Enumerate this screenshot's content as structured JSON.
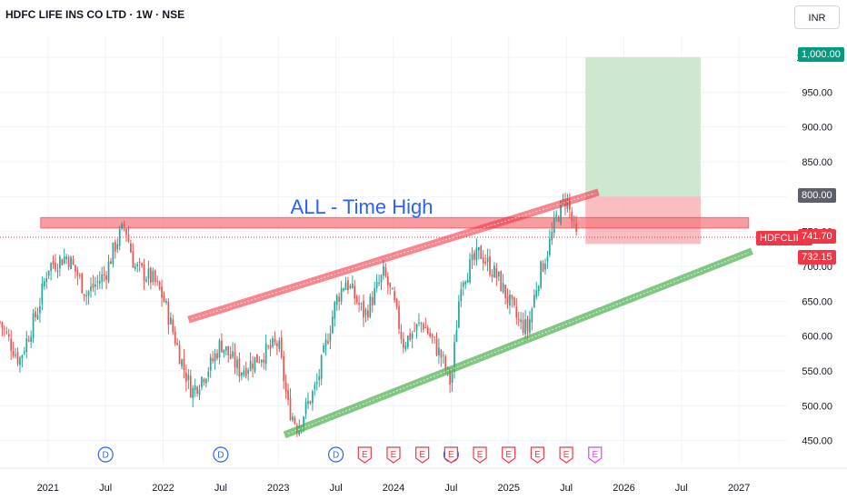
{
  "header": {
    "symbol_title": "HDFC LIFE INS CO LTD · 1W · NSE",
    "currency": "INR"
  },
  "annotation": {
    "text": "ALL - Time High",
    "color": "#2962ff"
  },
  "price_tags": {
    "target": "1,000.00",
    "entry": "800.00",
    "ticker": "HDFCLIFE",
    "last": "741.70",
    "stop": "732.15"
  },
  "colors": {
    "up": "#26a69a",
    "down": "#ef5350",
    "resistance": "#f23645",
    "support": "#4caf50",
    "target_zone": "#c8e6c9",
    "stop_zone": "#f8a7ad"
  },
  "events": {
    "dividend_label": "D",
    "earnings_label": "E"
  },
  "chart_data": {
    "type": "candlestick",
    "title": "HDFC LIFE INS CO LTD · 1W · NSE",
    "x_ticks": [
      "2021",
      "Jul",
      "2022",
      "Jul",
      "2023",
      "Jul",
      "2024",
      "Jul",
      "2025",
      "Jul",
      "2026",
      "Jul",
      "2027"
    ],
    "y_ticks": [
      450,
      500,
      550,
      600,
      650,
      700,
      750,
      800,
      850,
      900,
      950,
      1000
    ],
    "ylim": [
      430,
      1030
    ],
    "xlim": [
      "2020-08",
      "2027-06"
    ],
    "close_path": [
      [
        "2020-08",
        620
      ],
      [
        "2020-10",
        565
      ],
      [
        "2020-12",
        640
      ],
      [
        "2021-01",
        700
      ],
      [
        "2021-03",
        715
      ],
      [
        "2021-04",
        690
      ],
      [
        "2021-05",
        660
      ],
      [
        "2021-07",
        690
      ],
      [
        "2021-08",
        730
      ],
      [
        "2021-09",
        760
      ],
      [
        "2021-10",
        700
      ],
      [
        "2021-12",
        680
      ],
      [
        "2022-01",
        655
      ],
      [
        "2022-03",
        560
      ],
      [
        "2022-04",
        520
      ],
      [
        "2022-06",
        560
      ],
      [
        "2022-07",
        590
      ],
      [
        "2022-09",
        550
      ],
      [
        "2022-11",
        570
      ],
      [
        "2023-01",
        590
      ],
      [
        "2023-02",
        500
      ],
      [
        "2023-03",
        470
      ],
      [
        "2023-05",
        530
      ],
      [
        "2023-07",
        650
      ],
      [
        "2023-08",
        680
      ],
      [
        "2023-10",
        630
      ],
      [
        "2023-12",
        690
      ],
      [
        "2024-01",
        650
      ],
      [
        "2024-02",
        590
      ],
      [
        "2024-04",
        620
      ],
      [
        "2024-06",
        570
      ],
      [
        "2024-07",
        530
      ],
      [
        "2024-08",
        680
      ],
      [
        "2024-10",
        720
      ],
      [
        "2024-11",
        700
      ],
      [
        "2024-12",
        680
      ],
      [
        "2025-02",
        620
      ],
      [
        "2025-03",
        610
      ],
      [
        "2025-04",
        680
      ],
      [
        "2025-05",
        720
      ],
      [
        "2025-06",
        770
      ],
      [
        "2025-07",
        800
      ],
      [
        "2025-08",
        741.7
      ]
    ],
    "all_time_high_zone": [
      755,
      770
    ],
    "resistance_trendline": [
      [
        "2022-04",
        625
      ],
      [
        "2025-10",
        805
      ]
    ],
    "support_trendline": [
      [
        "2023-02",
        460
      ],
      [
        "2027-02",
        720
      ]
    ],
    "long_position": {
      "entry": 800,
      "target": 1000,
      "stop": 732.15
    },
    "last_price": 741.7,
    "dividends": [
      "2021-07",
      "2022-07",
      "2023-07",
      "2024-07"
    ],
    "earnings": [
      "2023-10",
      "2024-01",
      "2024-04",
      "2024-07",
      "2024-10",
      "2025-01",
      "2025-04",
      "2025-07",
      "2025-10"
    ],
    "grid": true
  }
}
